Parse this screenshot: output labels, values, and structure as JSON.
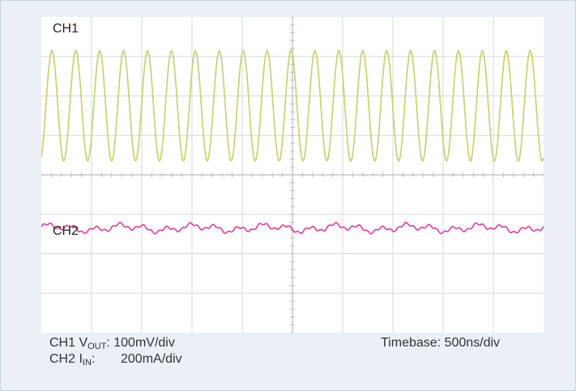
{
  "chart_data": {
    "type": "line",
    "title": "",
    "grid": true,
    "grid_divisions": {
      "x": 10,
      "y": 8
    },
    "xlabel": "",
    "ylabel": "",
    "series": [
      {
        "name": "CH1",
        "color": "#c6cf6a",
        "unit_per_div": "100mV/div",
        "description_waveform": "sine",
        "cycles_on_screen": 21,
        "amplitude_div": 1.4,
        "center_div": 1.75
      },
      {
        "name": "CH2",
        "color": "#e23c9a",
        "unit_per_div": "200mA/div",
        "cycles_on_screen": 21,
        "amplitude_div": 0.12,
        "center_div": -1.35
      }
    ]
  },
  "labels": {
    "ch1": "CH1",
    "ch2": "CH2"
  },
  "captions": {
    "ch1_prefix": "CH1 V",
    "ch1_sub": "OUT",
    "ch1_value": ": 100mV/div",
    "ch2_prefix": "CH2 I",
    "ch2_sub": "IN",
    "ch2_value": ":",
    "ch2_scale": "200mA/div",
    "timebase": "Timebase: 500ns/div"
  }
}
